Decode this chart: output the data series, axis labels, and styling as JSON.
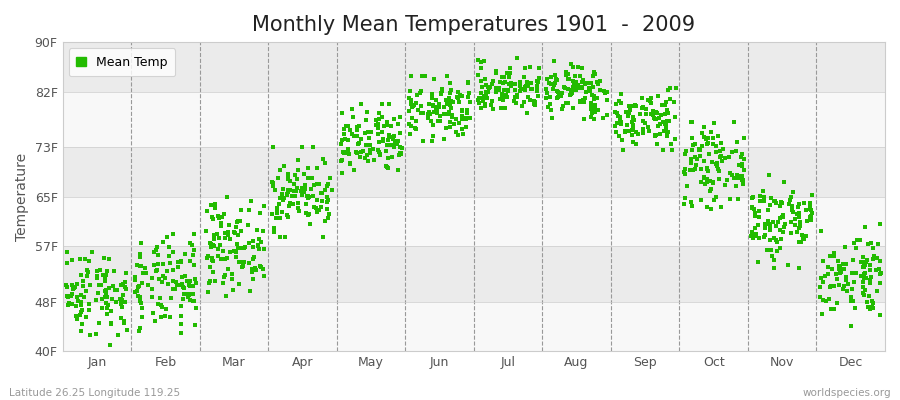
{
  "title": "Monthly Mean Temperatures 1901  -  2009",
  "ylabel": "Temperature",
  "y_ticks": [
    40,
    48,
    57,
    65,
    73,
    82,
    90
  ],
  "y_tick_labels": [
    "40F",
    "48F",
    "57F",
    "65F",
    "73F",
    "82F",
    "90F"
  ],
  "ylim": [
    40,
    90
  ],
  "months": [
    "Jan",
    "Feb",
    "Mar",
    "Apr",
    "May",
    "Jun",
    "Jul",
    "Aug",
    "Sep",
    "Oct",
    "Nov",
    "Dec"
  ],
  "dot_color": "#22bb00",
  "background_color": "#ffffff",
  "band_colors_light": "#f8f8f8",
  "band_colors_dark": "#ebebeb",
  "title_fontsize": 15,
  "label_fontsize": 10,
  "tick_fontsize": 9,
  "legend_label": "Mean Temp",
  "footnote_left": "Latitude 26.25 Longitude 119.25",
  "footnote_right": "worldspecies.org",
  "n_years": 109,
  "monthly_means_F": [
    49.5,
    50.5,
    57.0,
    65.5,
    73.5,
    79.0,
    82.5,
    82.0,
    77.5,
    70.0,
    61.0,
    52.5
  ],
  "monthly_stds_F": [
    3.5,
    3.8,
    3.5,
    3.0,
    2.8,
    2.5,
    2.0,
    2.2,
    2.5,
    3.0,
    3.5,
    3.5
  ],
  "monthly_mins_F": [
    41.0,
    41.5,
    49.0,
    58.5,
    67.0,
    74.0,
    78.0,
    77.5,
    72.5,
    63.0,
    53.5,
    44.0
  ],
  "monthly_maxs_F": [
    57.5,
    59.0,
    65.0,
    73.0,
    80.0,
    84.5,
    87.5,
    87.0,
    82.5,
    77.0,
    68.5,
    60.5
  ]
}
